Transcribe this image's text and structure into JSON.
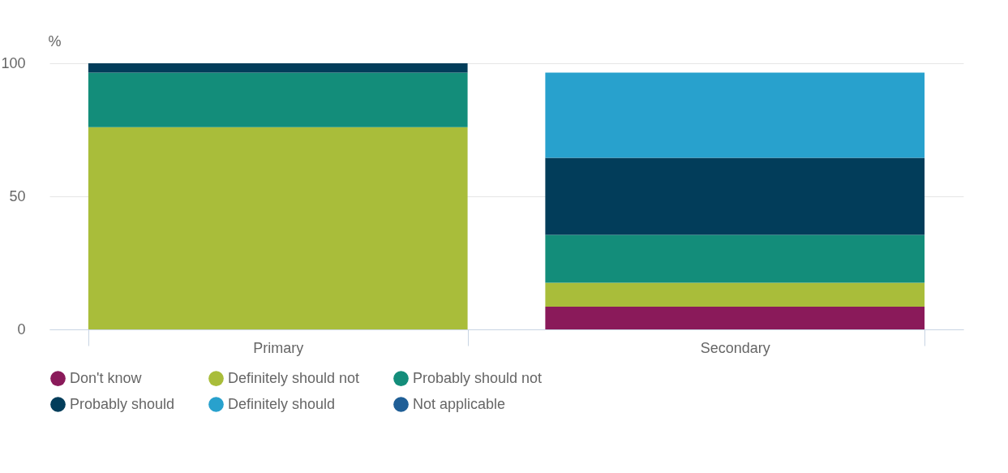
{
  "chart_data": {
    "type": "bar",
    "stacked": true,
    "ylabel": "%",
    "categories": [
      "Primary",
      "Secondary"
    ],
    "series": [
      {
        "name": "Don't know",
        "color": "#8a1a5a",
        "values": [
          0,
          8.5
        ]
      },
      {
        "name": "Definitely should not",
        "color": "#a9bd3a",
        "values": [
          76,
          9
        ]
      },
      {
        "name": "Probably should not",
        "color": "#138d7a",
        "values": [
          20.5,
          18
        ]
      },
      {
        "name": "Probably should",
        "color": "#023d5a",
        "values": [
          3.5,
          29
        ]
      },
      {
        "name": "Definitely should",
        "color": "#28a1cd",
        "values": [
          0,
          32
        ]
      },
      {
        "name": "Not applicable",
        "color": "#1f5e96",
        "values": [
          0,
          0
        ]
      }
    ],
    "ylim": [
      0,
      100
    ],
    "yticks": [
      0,
      50,
      100
    ],
    "grid": "y",
    "legend": "bottom"
  }
}
